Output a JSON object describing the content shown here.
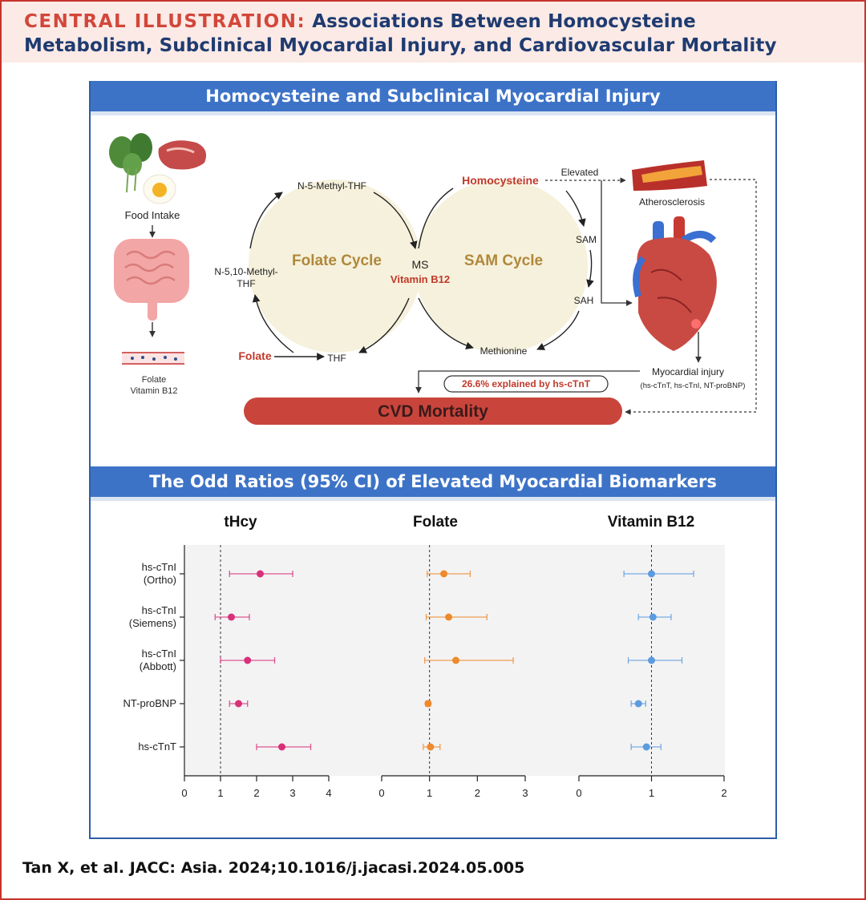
{
  "header": {
    "line1_label": "CENTRAL ILLUSTRATION:",
    "line1_title": "Associations Between Homocysteine",
    "line2_title": "Metabolism, Subclinical Myocardial Injury, and Cardiovascular Mortality"
  },
  "top_panel": {
    "title": "Homocysteine and Subclinical Myocardial Injury",
    "food_intake": "Food Intake",
    "folate": "Folate",
    "vitamin_b12": "Vitamin B12",
    "n5_methyl_thf": "N-5-Methyl-THF",
    "n510_methyl_thf_1": "N-5,10-Methyl-",
    "n510_methyl_thf_2": "THF",
    "folate_cycle": "Folate Cycle",
    "sam_cycle": "SAM Cycle",
    "ms": "MS",
    "ms_vitamin_b12": "Vitamin B12",
    "folate_input": "Folate",
    "thf": "THF",
    "homocysteine": "Homocysteine",
    "elevated": "Elevated",
    "atherosclerosis": "Atherosclerosis",
    "sam": "SAM",
    "sah": "SAH",
    "methionine": "Methionine",
    "myocardial_injury": "Myocardial injury",
    "biomarkers": "(hs-cTnT, hs-cTnI, NT-proBNP)",
    "explained": "26.6% explained by hs-cTnT",
    "cvd_mortality": "CVD Mortality",
    "colors": {
      "cycle_fill": "#f6f1dc",
      "cycle_text": "#b0883b",
      "red_text": "#c0392b",
      "mortality_bar": "#c9453c"
    }
  },
  "bottom_panel": {
    "title": "The Odd Ratios (95% CI) of Elevated Myocardial Biomarkers"
  },
  "chart_data": {
    "type": "scatter",
    "subtype": "forest-plot",
    "title": "The Odd Ratios (95% CI) of Elevated Myocardial Biomarkers",
    "categories": [
      "hs-cTnI\n(Ortho)",
      "hs-cTnI\n(Siemens)",
      "hs-cTnI\n(Abbott)",
      "NT-proBNP",
      "hs-cTnT"
    ],
    "category_lines": [
      [
        "hs-cTnI",
        "(Ortho)"
      ],
      [
        "hs-cTnI",
        "(Siemens)"
      ],
      [
        "hs-cTnI",
        "(Abbott)"
      ],
      [
        "NT-proBNP"
      ],
      [
        "hs-cTnT"
      ]
    ],
    "reference_line": 1,
    "panels": [
      {
        "name": "tHcy",
        "color": "#d9307a",
        "xlim": [
          0,
          4
        ],
        "xticks": [
          "0",
          "1",
          "2",
          "3",
          "4"
        ],
        "or": [
          2.1,
          1.3,
          1.75,
          1.5,
          2.7
        ],
        "lower": [
          1.25,
          0.85,
          1.0,
          1.25,
          2.0
        ],
        "upper": [
          3.0,
          1.8,
          2.5,
          1.75,
          3.5
        ]
      },
      {
        "name": "Folate",
        "color": "#ee8a2c",
        "xlim": [
          0,
          3
        ],
        "xticks": [
          "0",
          "1",
          "2",
          "3"
        ],
        "or": [
          1.3,
          1.4,
          1.55,
          0.97,
          1.02
        ],
        "lower": [
          0.95,
          0.93,
          0.9,
          0.92,
          0.87
        ],
        "upper": [
          1.85,
          2.2,
          2.75,
          1.02,
          1.22
        ]
      },
      {
        "name": "Vitamin B12",
        "color": "#5b9be0",
        "xlim": [
          0,
          2
        ],
        "xticks": [
          "0",
          "1",
          "2"
        ],
        "or": [
          1.0,
          1.02,
          1.0,
          0.82,
          0.93
        ],
        "lower": [
          0.62,
          0.82,
          0.68,
          0.72,
          0.72
        ],
        "upper": [
          1.58,
          1.27,
          1.42,
          0.92,
          1.13
        ]
      }
    ]
  },
  "citation": "Tan X, et al. JACC: Asia. 2024;10.1016/j.jacasi.2024.05.005"
}
